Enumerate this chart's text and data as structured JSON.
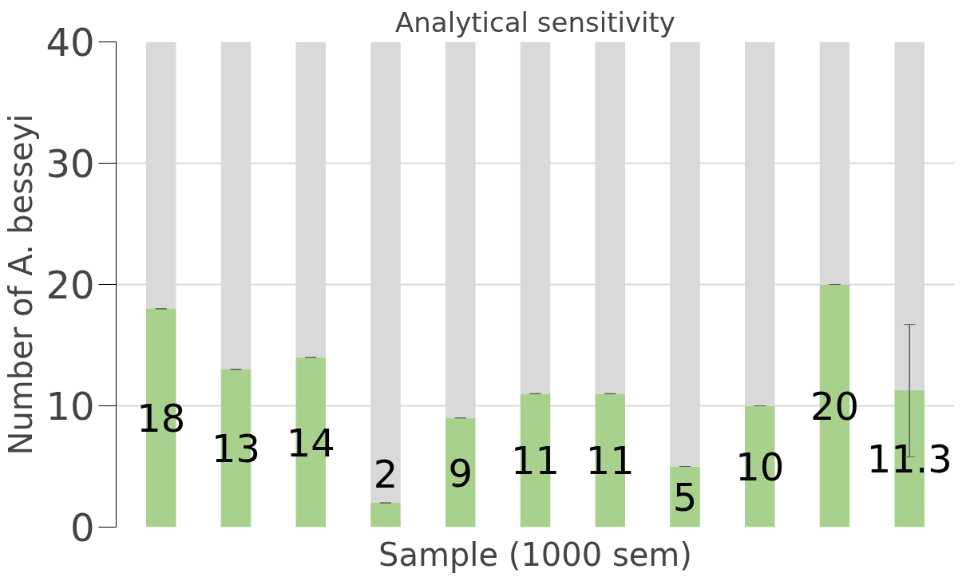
{
  "chart_data": {
    "type": "bar",
    "title": "Analytical sensitivity",
    "xlabel": "Sample (1000 sem)",
    "ylabel": "Number of A. besseyi",
    "categories": [
      null,
      null,
      null,
      null,
      null,
      null,
      null,
      null,
      null,
      null,
      null
    ],
    "stacked": true,
    "series": [
      {
        "color": "#a9d18e",
        "values": [
          18,
          13,
          14,
          2,
          9,
          11,
          11,
          5,
          10,
          20,
          11.3
        ],
        "errors": [
          0,
          0,
          0,
          0,
          0,
          0,
          0,
          0,
          0,
          0,
          [
            5.8,
            16.7
          ]
        ],
        "value_labels": [
          "18",
          "13",
          "14",
          "2",
          "9",
          "11",
          "11",
          "5",
          "10",
          "20",
          "11.3"
        ]
      },
      {
        "color": "#d9d9d9",
        "values": [
          22,
          27,
          26,
          38,
          31,
          29,
          29,
          35,
          30,
          20,
          28.7
        ]
      }
    ],
    "ylim": [
      0,
      40
    ],
    "yticks": [
      0,
      10,
      20,
      30,
      40
    ],
    "grid": "y"
  }
}
